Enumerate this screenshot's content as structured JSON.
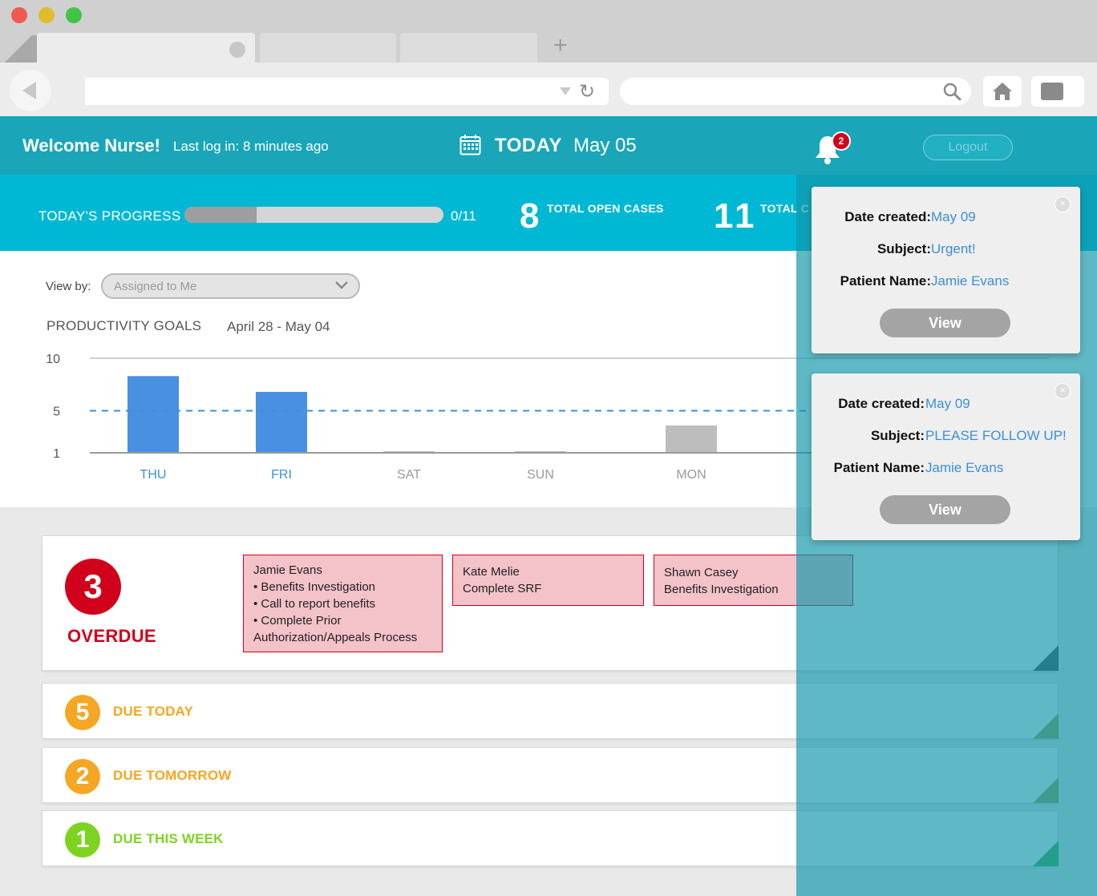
{
  "browser": {
    "new_tab_symbol": "+"
  },
  "header": {
    "welcome": "Welcome Nurse!",
    "last_login": "Last log in: 8 minutes ago",
    "today_label": "TODAY",
    "today_date": "May 05",
    "notification_count": "2",
    "logout_label": "Logout"
  },
  "progress": {
    "label": "TODAY'S PROGRESS",
    "fraction": 0.28,
    "count_text": "0/11",
    "open_cases_value": "8",
    "open_cases_label": "TOTAL OPEN CASES",
    "total_value": "11",
    "total_label": "TOTAL C"
  },
  "chart": {
    "viewby_label": "View by:",
    "viewby_selected": "Assigned to Me",
    "title": "PRODUCTIVITY GOALS",
    "range": "April 28 - May 04"
  },
  "chart_data": {
    "type": "bar",
    "categories": [
      "THU",
      "FRI",
      "SAT",
      "SUN",
      "MON"
    ],
    "values": [
      8.3,
      6.8,
      0,
      0,
      3.6
    ],
    "bar_colors": [
      "#4a90e2",
      "#4a90e2",
      "#bdbdbd",
      "#bdbdbd",
      "#bdbdbd"
    ],
    "label_colors": [
      "#3b8fd9",
      "#3b8fd9",
      "#9a9a9a",
      "#9a9a9a",
      "#9a9a9a"
    ],
    "goal": 5,
    "goal_color": "#3b8fd9",
    "yticks": [
      10,
      5,
      1
    ],
    "ylim": [
      1,
      10
    ]
  },
  "cases": {
    "overdue": {
      "count": "3",
      "label": "OVERDUE",
      "tasks": [
        {
          "name": "Jamie Evans",
          "lines": [
            "• Benefits Investigation",
            "• Call to report benefits",
            "• Complete Prior",
            "Authorization/Appeals Process"
          ]
        },
        {
          "name": "Kate Melie",
          "lines": [
            "Complete SRF"
          ]
        },
        {
          "name": "Shawn Casey",
          "lines": [
            "Benefits Investigation"
          ]
        }
      ]
    },
    "due_today": {
      "count": "5",
      "label": "DUE TODAY",
      "color": "#f5a623"
    },
    "due_tomorrow": {
      "count": "2",
      "label": "DUE TOMORROW",
      "color": "#f5a623"
    },
    "due_this_week": {
      "count": "1",
      "label": "DUE THIS WEEK",
      "color": "#7ed321"
    }
  },
  "notifications": [
    {
      "date_label": "Date created:",
      "date_value": "May 09",
      "subject_label": "Subject:",
      "subject_value": "Urgent!",
      "patient_label": "Patient Name:",
      "patient_value": "Jamie Evans",
      "view_label": "View"
    },
    {
      "date_label": "Date created:",
      "date_value": "May 09",
      "subject_label": "Subject:",
      "subject_value": "PLEASE FOLLOW UP!",
      "patient_label": "Patient Name:",
      "patient_value": "Jamie Evans",
      "view_label": "View"
    }
  ],
  "colors": {
    "header_teal": "#1aa6b8",
    "band_cyan": "#00b8d4",
    "overdue_red": "#d0021b",
    "task_pink": "#f4c2c9",
    "link_blue": "#3b8fd9"
  },
  "icons": {
    "calendar": "calendar-icon",
    "bell": "bell-icon",
    "search": "search-icon",
    "home": "home-icon",
    "reload": "reload-icon",
    "back": "back-arrow-icon"
  }
}
